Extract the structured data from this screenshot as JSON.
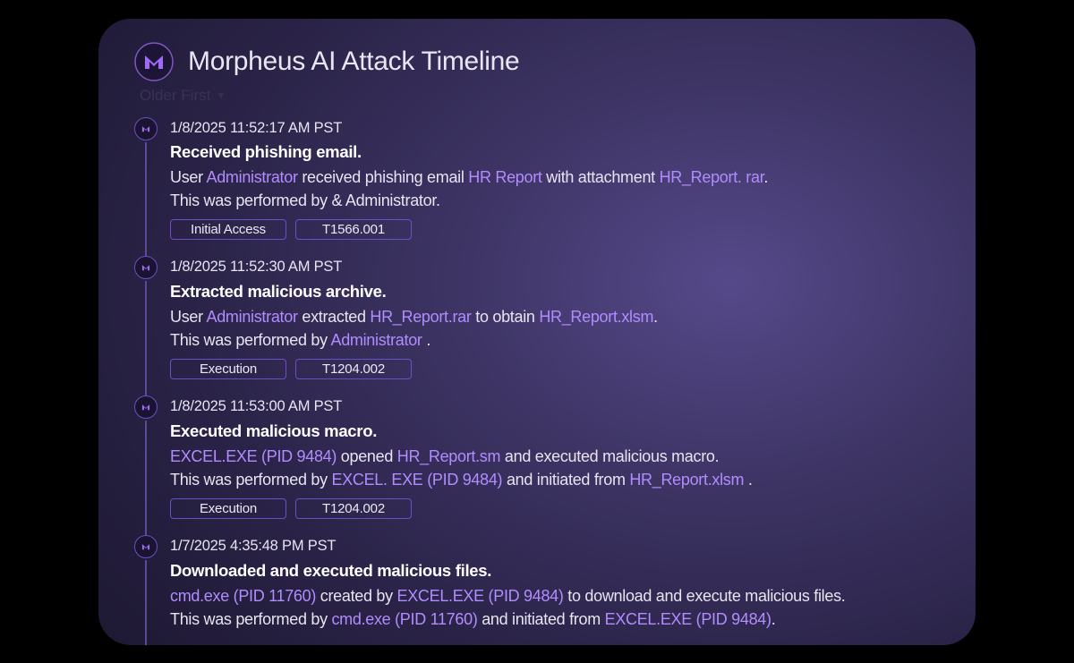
{
  "header": {
    "title": "Morpheus AI Attack Timeline",
    "sort_label": "Older First"
  },
  "colors": {
    "card_bg_inner": "#56498a",
    "card_bg_outer": "#16122a",
    "title_color": "#e9e6f2",
    "body_text": "#e8e4f2",
    "highlight": "#b18cff",
    "tag_border": "#6b4fc5",
    "bullet_bg": "#1a1430",
    "connector": "#5b4a9a",
    "page_bg": "#000000",
    "logo_accent": "#a06af7",
    "logo_outline": "#7e57c2"
  },
  "events": [
    {
      "timestamp": "1/8/2025 11:52:17 AM PST",
      "title": "Received phishing email.",
      "desc_segments": [
        {
          "t": "User ",
          "hl": false
        },
        {
          "t": "Administrator",
          "hl": true
        },
        {
          "t": " received phishing email ",
          "hl": false
        },
        {
          "t": "HR Report",
          "hl": true
        },
        {
          "t": " with attachment  ",
          "hl": false
        },
        {
          "t": "HR_Report. rar",
          "hl": true
        },
        {
          "t": ".",
          "hl": false
        },
        {
          "br": true
        },
        {
          "t": "This was performed by & Administrator.",
          "hl": false
        }
      ],
      "tags": [
        "Initial Access",
        "T1566.001"
      ]
    },
    {
      "timestamp": "1/8/2025 11:52:30 AM PST",
      "title": "Extracted malicious archive.",
      "desc_segments": [
        {
          "t": "User ",
          "hl": false
        },
        {
          "t": "Administrator",
          "hl": true
        },
        {
          "t": " extracted ",
          "hl": false
        },
        {
          "t": "HR_Report.rar",
          "hl": true
        },
        {
          "t": " to obtain ",
          "hl": false
        },
        {
          "t": "HR_Report.xlsm",
          "hl": true
        },
        {
          "t": ".",
          "hl": false
        },
        {
          "br": true
        },
        {
          "t": "This was performed by ",
          "hl": false
        },
        {
          "t": "Administrator ",
          "hl": true
        },
        {
          "t": ".",
          "hl": false
        }
      ],
      "tags": [
        "Execution",
        "T1204.002"
      ]
    },
    {
      "timestamp": "1/8/2025 11:53:00 AM PST",
      "title": "Executed malicious macro.",
      "desc_segments": [
        {
          "t": "EXCEL.EXE (PID 9484)",
          "hl": true
        },
        {
          "t": " opened ",
          "hl": false
        },
        {
          "t": "HR_Report.sm",
          "hl": true
        },
        {
          "t": " and executed malicious macro.",
          "hl": false
        },
        {
          "br": true
        },
        {
          "t": "This was performed by ",
          "hl": false
        },
        {
          "t": "EXCEL. EXE (PID 9484)",
          "hl": true
        },
        {
          "t": " and initiated from ",
          "hl": false
        },
        {
          "t": "HR_Report.xlsm ",
          "hl": true
        },
        {
          "t": ".",
          "hl": false
        }
      ],
      "tags": [
        "Execution",
        "T1204.002"
      ]
    },
    {
      "timestamp": "1/7/2025 4:35:48 PM PST",
      "title": "Downloaded and executed malicious files.",
      "desc_segments": [
        {
          "t": "cmd.exe (PID 11760)",
          "hl": true
        },
        {
          "t": " created by ",
          "hl": false
        },
        {
          "t": "EXCEL.EXE (PID 9484)",
          "hl": true
        },
        {
          "t": " to download and execute malicious files.",
          "hl": false
        },
        {
          "br": true
        },
        {
          "t": "This was performed by ",
          "hl": false
        },
        {
          "t": "cmd.exe (PID 11760)",
          "hl": true
        },
        {
          "t": " and initiated from ",
          "hl": false
        },
        {
          "t": "EXCEL.EXE (PID 9484)",
          "hl": true
        },
        {
          "t": ".",
          "hl": false
        }
      ],
      "tags": []
    }
  ]
}
